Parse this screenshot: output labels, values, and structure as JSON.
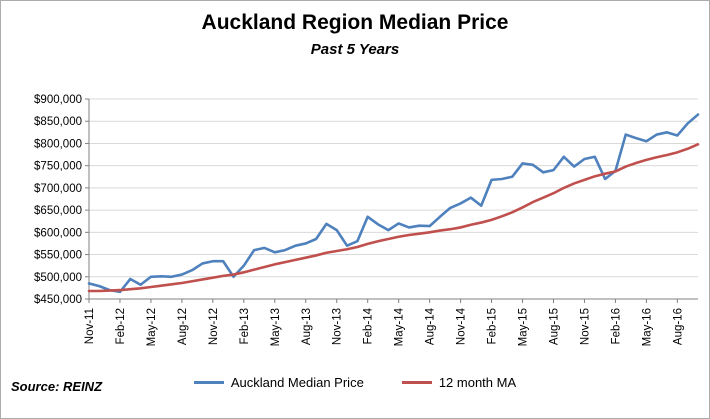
{
  "footer": {
    "source": "Source: REINZ"
  },
  "chart_data": {
    "type": "line",
    "title": "Auckland Region Median Price",
    "subtitle": "Past 5 Years",
    "grid": true,
    "legend_position": "bottom",
    "ylim": [
      450000,
      900000
    ],
    "y_step": 50000,
    "y_tick_labels": [
      "$450,000",
      "$500,000",
      "$550,000",
      "$600,000",
      "$650,000",
      "$700,000",
      "$750,000",
      "$800,000",
      "$850,000",
      "$900,000"
    ],
    "x_tick_every": 3,
    "x": [
      "Nov-11",
      "Dec-11",
      "Jan-12",
      "Feb-12",
      "Mar-12",
      "Apr-12",
      "May-12",
      "Jun-12",
      "Jul-12",
      "Aug-12",
      "Sep-12",
      "Oct-12",
      "Nov-12",
      "Dec-12",
      "Jan-13",
      "Feb-13",
      "Mar-13",
      "Apr-13",
      "May-13",
      "Jun-13",
      "Jul-13",
      "Aug-13",
      "Sep-13",
      "Oct-13",
      "Nov-13",
      "Dec-13",
      "Jan-14",
      "Feb-14",
      "Mar-14",
      "Apr-14",
      "May-14",
      "Jun-14",
      "Jul-14",
      "Aug-14",
      "Sep-14",
      "Oct-14",
      "Nov-14",
      "Dec-14",
      "Jan-15",
      "Feb-15",
      "Mar-15",
      "Apr-15",
      "May-15",
      "Jun-15",
      "Jul-15",
      "Aug-15",
      "Sep-15",
      "Oct-15",
      "Nov-15",
      "Dec-15",
      "Jan-16",
      "Feb-16",
      "Mar-16",
      "Apr-16",
      "May-16",
      "Jun-16",
      "Jul-16",
      "Aug-16",
      "Sep-16",
      "Oct-16"
    ],
    "series": [
      {
        "name": "Auckland Median Price",
        "color": "#4f81bd",
        "values": [
          485000,
          479000,
          470000,
          466000,
          495000,
          482000,
          500000,
          501000,
          500000,
          505000,
          515000,
          530000,
          535000,
          535000,
          500000,
          525000,
          560000,
          565000,
          555000,
          560000,
          570000,
          575000,
          585000,
          619000,
          605000,
          570000,
          580000,
          635000,
          618000,
          605000,
          620000,
          611000,
          615000,
          614000,
          635000,
          655000,
          665000,
          678000,
          660000,
          718000,
          720000,
          725000,
          755000,
          752000,
          735000,
          740000,
          770000,
          748000,
          765000,
          770000,
          720000,
          738000,
          820000,
          812000,
          805000,
          820000,
          825000,
          818000,
          845000,
          865000
        ]
      },
      {
        "name": "12 month MA",
        "color": "#c0504d",
        "values": [
          468000,
          468000,
          469000,
          470000,
          472000,
          474000,
          477000,
          480000,
          483000,
          486000,
          490000,
          494000,
          498000,
          502000,
          505000,
          510000,
          516000,
          522000,
          528000,
          533000,
          538000,
          543000,
          548000,
          554000,
          558000,
          562000,
          567000,
          574000,
          580000,
          585000,
          590000,
          594000,
          597000,
          600000,
          604000,
          607000,
          611000,
          617000,
          622000,
          628000,
          636000,
          645000,
          656000,
          668000,
          678000,
          688000,
          700000,
          710000,
          718000,
          726000,
          732000,
          737000,
          748000,
          756000,
          763000,
          769000,
          774000,
          780000,
          788000,
          798000
        ]
      }
    ]
  },
  "style": {
    "grid_color": "#d9d9d9",
    "axis_color": "#808080",
    "label_color": "#000000"
  }
}
